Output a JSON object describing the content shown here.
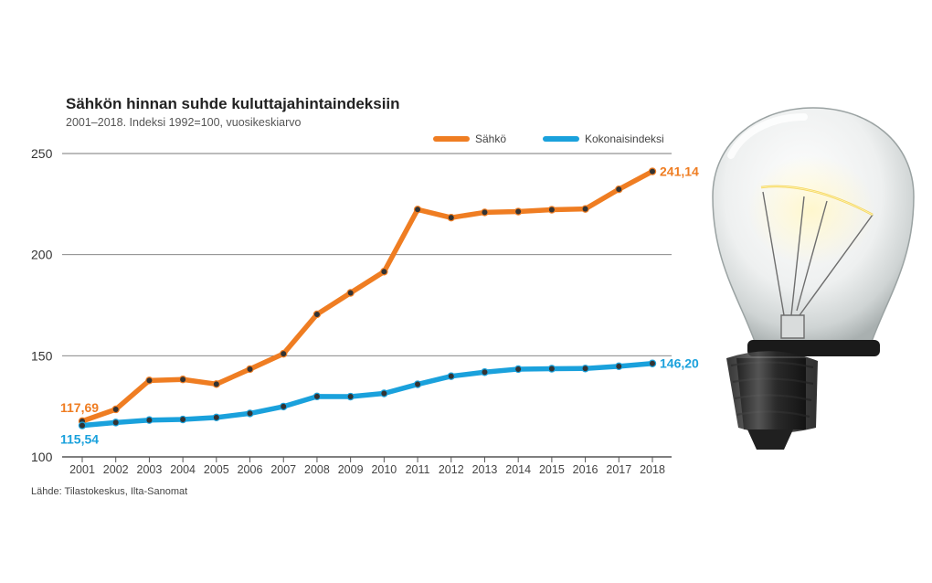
{
  "chart_data": {
    "type": "line",
    "title": "Sähkön hinnan suhde kuluttajahintaindeksiin",
    "subtitle": "2001–2018. Indeksi 1992=100, vuosikeskiarvo",
    "source": "Lähde: Tilastokeskus, Ilta-Sanomat",
    "x": [
      2001,
      2002,
      2003,
      2004,
      2005,
      2006,
      2007,
      2008,
      2009,
      2010,
      2011,
      2012,
      2013,
      2014,
      2015,
      2016,
      2017,
      2018
    ],
    "ylim": [
      100,
      250
    ],
    "yticks": [
      100,
      150,
      200,
      250
    ],
    "grid": true,
    "legend_position": "top-right",
    "series": [
      {
        "name": "Sähkö",
        "color": "#ef7d22",
        "values": [
          117.69,
          123.5,
          137.8,
          138.3,
          136.0,
          143.4,
          151.0,
          170.5,
          181.1,
          191.6,
          222.3,
          218.3,
          220.9,
          221.3,
          222.2,
          222.6,
          232.3,
          241.14
        ],
        "start_label": "117,69",
        "end_label": "241,14"
      },
      {
        "name": "Kokonaisindeksi",
        "color": "#1aa1dc",
        "values": [
          115.54,
          117.0,
          118.2,
          118.5,
          119.5,
          121.5,
          124.9,
          129.9,
          129.8,
          131.4,
          135.9,
          139.9,
          141.9,
          143.4,
          143.6,
          143.7,
          144.8,
          146.2
        ],
        "start_label": "115,54",
        "end_label": "146,20"
      }
    ]
  },
  "illustration": {
    "icon": "light-bulb-icon"
  }
}
